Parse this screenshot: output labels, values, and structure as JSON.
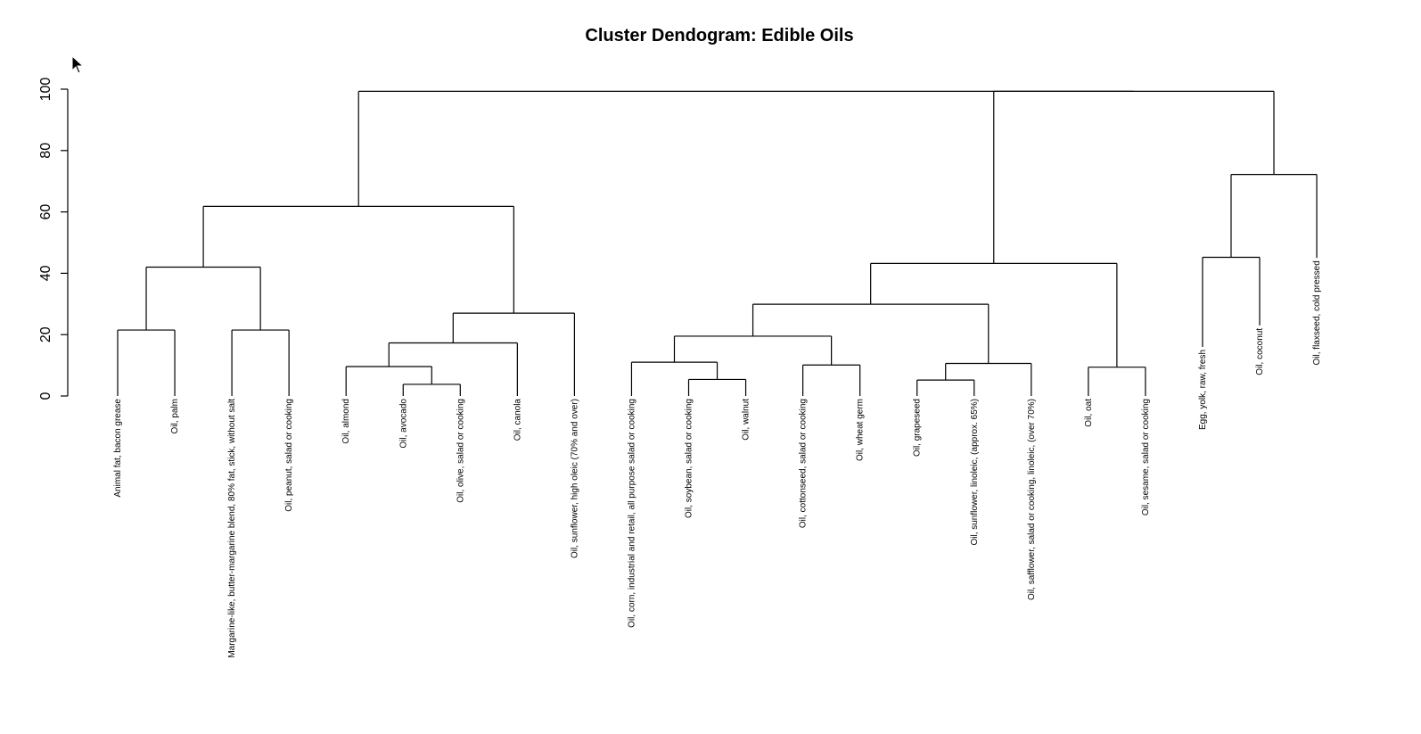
{
  "chart_data": {
    "type": "dendrogram",
    "title": "Cluster Dendogram: Edible Oils",
    "xlabel": "",
    "ylabel": "",
    "ylim": [
      0,
      100
    ],
    "yticks": [
      "0",
      "20",
      "40",
      "60",
      "80",
      "100"
    ],
    "leaves": [
      {
        "label": "Animal fat, bacon grease",
        "height": 0
      },
      {
        "label": "Oil, palm",
        "height": 0
      },
      {
        "label": "Margarine-like, butter-margarine blend, 80% fat, stick, without salt",
        "height": 0
      },
      {
        "label": "Oil, peanut, salad or cooking",
        "height": 0
      },
      {
        "label": "Oil, almond",
        "height": 0
      },
      {
        "label": "Oil, avocado",
        "height": 0
      },
      {
        "label": "Oil, olive, salad or cooking",
        "height": 0
      },
      {
        "label": "Oil, canola",
        "height": 0
      },
      {
        "label": "Oil, sunflower, high oleic (70% and over)",
        "height": 0
      },
      {
        "label": "Oil, corn, industrial and retail, all purpose salad or cooking",
        "height": 0
      },
      {
        "label": "Oil, soybean, salad or cooking",
        "height": 0
      },
      {
        "label": "Oil, walnut",
        "height": 0
      },
      {
        "label": "Oil, cottonseed, salad or cooking",
        "height": 0
      },
      {
        "label": "Oil, wheat germ",
        "height": 0
      },
      {
        "label": "Oil, grapeseed",
        "height": 0
      },
      {
        "label": "Oil, sunflower, linoleic, (approx. 65%)",
        "height": 0
      },
      {
        "label": "Oil, safflower, salad or cooking, linoleic, (over 70%)",
        "height": 0
      },
      {
        "label": "Oil, oat",
        "height": 0
      },
      {
        "label": "Oil, sesame, salad or cooking",
        "height": 0
      },
      {
        "label": "Egg, yolk, raw, fresh",
        "height": 16
      },
      {
        "label": "Oil, coconut",
        "height": 23
      },
      {
        "label": "Oil, flaxseed, cold pressed",
        "height": 45
      }
    ],
    "merges": [
      {
        "left": "L0",
        "right": "L1",
        "height": 21.5
      },
      {
        "left": "L2",
        "right": "L3",
        "height": 21.5
      },
      {
        "left": "M0",
        "right": "M1",
        "height": 42
      },
      {
        "left": "L5",
        "right": "L6",
        "height": 3.8
      },
      {
        "left": "L4",
        "right": "M3",
        "height": 9.6
      },
      {
        "left": "M4",
        "right": "L7",
        "height": 17.3
      },
      {
        "left": "M5",
        "right": "L8",
        "height": 27
      },
      {
        "left": "M2",
        "right": "M6",
        "height": 61.8
      },
      {
        "left": "L10",
        "right": "L11",
        "height": 5.4
      },
      {
        "left": "L9",
        "right": "M8",
        "height": 11
      },
      {
        "left": "L12",
        "right": "L13",
        "height": 10.1
      },
      {
        "left": "M9",
        "right": "M10",
        "height": 19.5
      },
      {
        "left": "L14",
        "right": "L15",
        "height": 5.2
      },
      {
        "left": "M12",
        "right": "L16",
        "height": 10.6
      },
      {
        "left": "M11",
        "right": "M13",
        "height": 29.9
      },
      {
        "left": "L17",
        "right": "L18",
        "height": 9.4
      },
      {
        "left": "M14",
        "right": "M15",
        "height": 43.2
      },
      {
        "left": "L19",
        "right": "L20",
        "height": 45.2
      },
      {
        "left": "M17",
        "right": "L21",
        "height": 72.2
      },
      {
        "left": "M16",
        "right": "M18",
        "height": 99.3
      },
      {
        "left": "M7",
        "right": "M19",
        "height": 99.3
      }
    ]
  }
}
